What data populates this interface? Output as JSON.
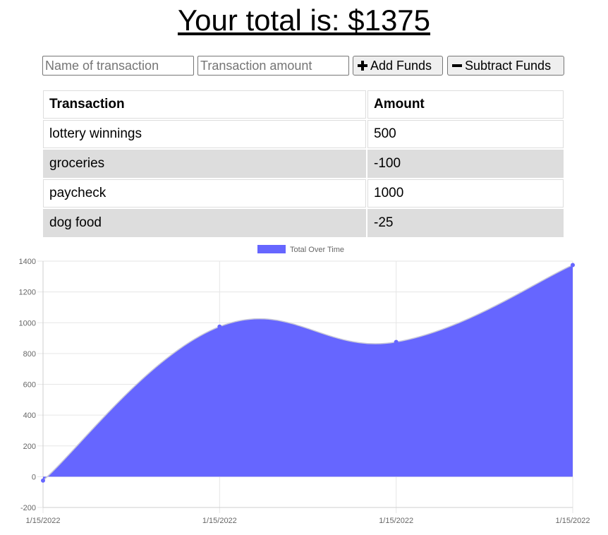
{
  "header": {
    "total_text": "Your total is: $1375"
  },
  "form": {
    "name_placeholder": "Name of transaction",
    "amount_placeholder": "Transaction amount",
    "add_label": "Add Funds",
    "subtract_label": "Subtract Funds"
  },
  "table": {
    "headers": [
      "Transaction",
      "Amount"
    ],
    "rows": [
      {
        "name": "lottery winnings",
        "amount": "500"
      },
      {
        "name": "groceries",
        "amount": "-100"
      },
      {
        "name": "paycheck",
        "amount": "1000"
      },
      {
        "name": "dog food",
        "amount": "-25"
      }
    ]
  },
  "chart_data": {
    "type": "area",
    "categories": [
      "1/15/2022",
      "1/15/2022",
      "1/15/2022",
      "1/15/2022"
    ],
    "series": [
      {
        "name": "Total Over Time",
        "values": [
          -25,
          975,
          875,
          1375
        ],
        "color": "#6666ff"
      }
    ],
    "ylim": [
      -200,
      1400
    ],
    "yticks": [
      -200,
      0,
      200,
      400,
      600,
      800,
      1000,
      1200,
      1400
    ],
    "legend": "top-center",
    "grid": true
  }
}
